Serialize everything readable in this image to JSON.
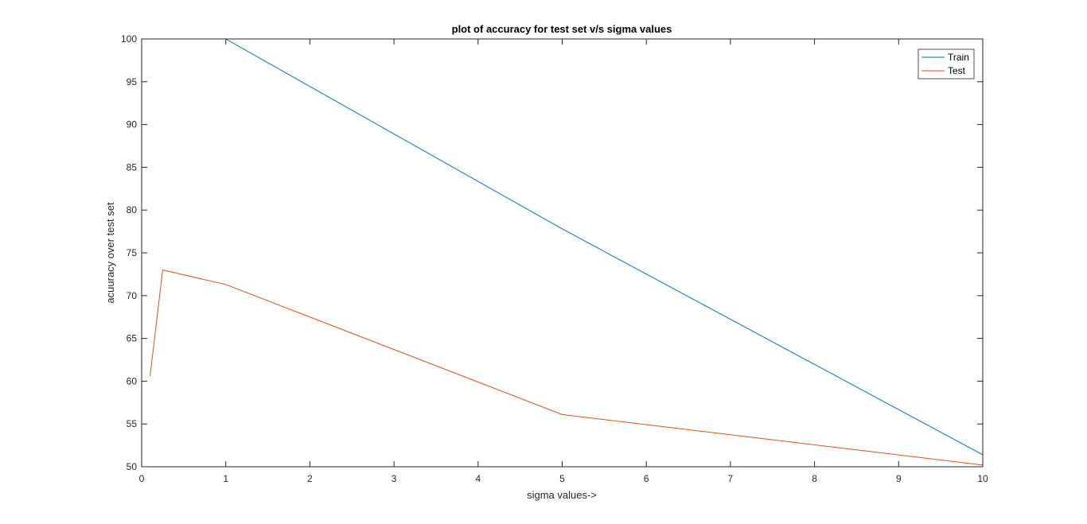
{
  "chart_data": {
    "type": "line",
    "title": "plot of accuracy for test set v/s sigma values",
    "xlabel": "sigma values->",
    "ylabel": "acuuracy over test set",
    "xlim": [
      0,
      10
    ],
    "ylim": [
      50,
      100
    ],
    "xticks": [
      "0",
      "1",
      "2",
      "3",
      "4",
      "5",
      "6",
      "7",
      "8",
      "9",
      "10"
    ],
    "yticks": [
      "50",
      "55",
      "60",
      "65",
      "70",
      "75",
      "80",
      "85",
      "90",
      "95",
      "100"
    ],
    "grid": false,
    "legend_position": "top-right",
    "series": [
      {
        "name": "Train",
        "color": "#0072BD",
        "x": [
          0.1,
          0.25,
          1,
          5,
          10
        ],
        "y": [
          100,
          100,
          100,
          77.8,
          51.4
        ]
      },
      {
        "name": "Test",
        "color": "#D95319",
        "x": [
          0.1,
          0.25,
          1,
          5,
          10
        ],
        "y": [
          60.6,
          73.0,
          71.3,
          56.1,
          50.2
        ]
      }
    ]
  }
}
